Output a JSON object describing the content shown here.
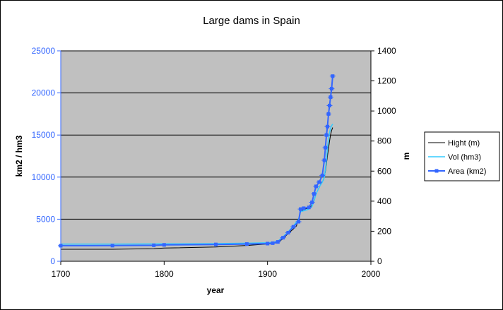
{
  "chart_data": {
    "type": "line",
    "title": "Large dams in Spain",
    "xlabel": "year",
    "ylabel_left": "km2 / hm3",
    "ylabel_right": "m",
    "xlim": [
      1700,
      2000
    ],
    "ylim_left": [
      0,
      25000
    ],
    "ylim_right": [
      0,
      1400
    ],
    "x_ticks": [
      "1700",
      "1800",
      "1900",
      "2000"
    ],
    "y_ticks_left": [
      "0",
      "5000",
      "10000",
      "15000",
      "20000",
      "25000"
    ],
    "y_ticks_right": [
      "0",
      "200",
      "400",
      "600",
      "800",
      "1000",
      "1200",
      "1400"
    ],
    "grid": "horizontal major gridlines",
    "legend_position": "right",
    "colors": {
      "plot_background": "#c0c0c0",
      "hight": "#000000",
      "vol": "#33ccff",
      "area": "#3366ff",
      "left_axis_text": "#3366ff",
      "right_axis_text": "#000000"
    },
    "series": [
      {
        "name": "Hight (m)",
        "axis": "right",
        "x": [
          1700,
          1750,
          1790,
          1800,
          1850,
          1880,
          1900,
          1905,
          1910,
          1915,
          1920,
          1925,
          1928,
          1930,
          1932,
          1935,
          1940,
          1943,
          1945,
          1947,
          1950,
          1952,
          1954,
          1955,
          1956,
          1957,
          1958,
          1959,
          1960,
          1961,
          1962,
          1963
        ],
        "values": [
          80,
          80,
          84,
          88,
          95,
          105,
          115,
          118,
          125,
          150,
          185,
          215,
          235,
          280,
          330,
          345,
          355,
          370,
          400,
          450,
          490,
          520,
          540,
          560,
          600,
          650,
          700,
          750,
          800,
          840,
          870,
          890
        ]
      },
      {
        "name": "Vol (hm3)",
        "axis": "left",
        "x": [
          1700,
          1750,
          1790,
          1800,
          1850,
          1880,
          1900,
          1905,
          1910,
          1915,
          1920,
          1925,
          1930,
          1932,
          1935,
          1940,
          1943,
          1945,
          1947,
          1950,
          1953,
          1955,
          1957,
          1958,
          1959,
          1960,
          1961,
          1962,
          1963
        ],
        "values": [
          2050,
          2050,
          2060,
          2070,
          2100,
          2150,
          2200,
          2250,
          2400,
          2900,
          3500,
          4200,
          5000,
          5900,
          6000,
          6200,
          6500,
          7200,
          8000,
          8800,
          9400,
          10000,
          12000,
          13500,
          14500,
          15300,
          15800,
          16100,
          16300
        ]
      },
      {
        "name": "Area (km2)",
        "axis": "left",
        "x": [
          1700,
          1750,
          1790,
          1800,
          1850,
          1880,
          1900,
          1905,
          1910,
          1915,
          1920,
          1925,
          1930,
          1932,
          1935,
          1940,
          1943,
          1945,
          1947,
          1950,
          1953,
          1955,
          1956,
          1957,
          1958,
          1959,
          1960,
          1961,
          1962,
          1963
        ],
        "values": [
          1850,
          1860,
          1900,
          1950,
          2000,
          2050,
          2100,
          2150,
          2300,
          2800,
          3400,
          4100,
          4700,
          6200,
          6300,
          6400,
          7000,
          8000,
          8900,
          9400,
          10200,
          12000,
          13500,
          15000,
          16000,
          17500,
          18500,
          19500,
          20500,
          22000
        ]
      }
    ]
  }
}
